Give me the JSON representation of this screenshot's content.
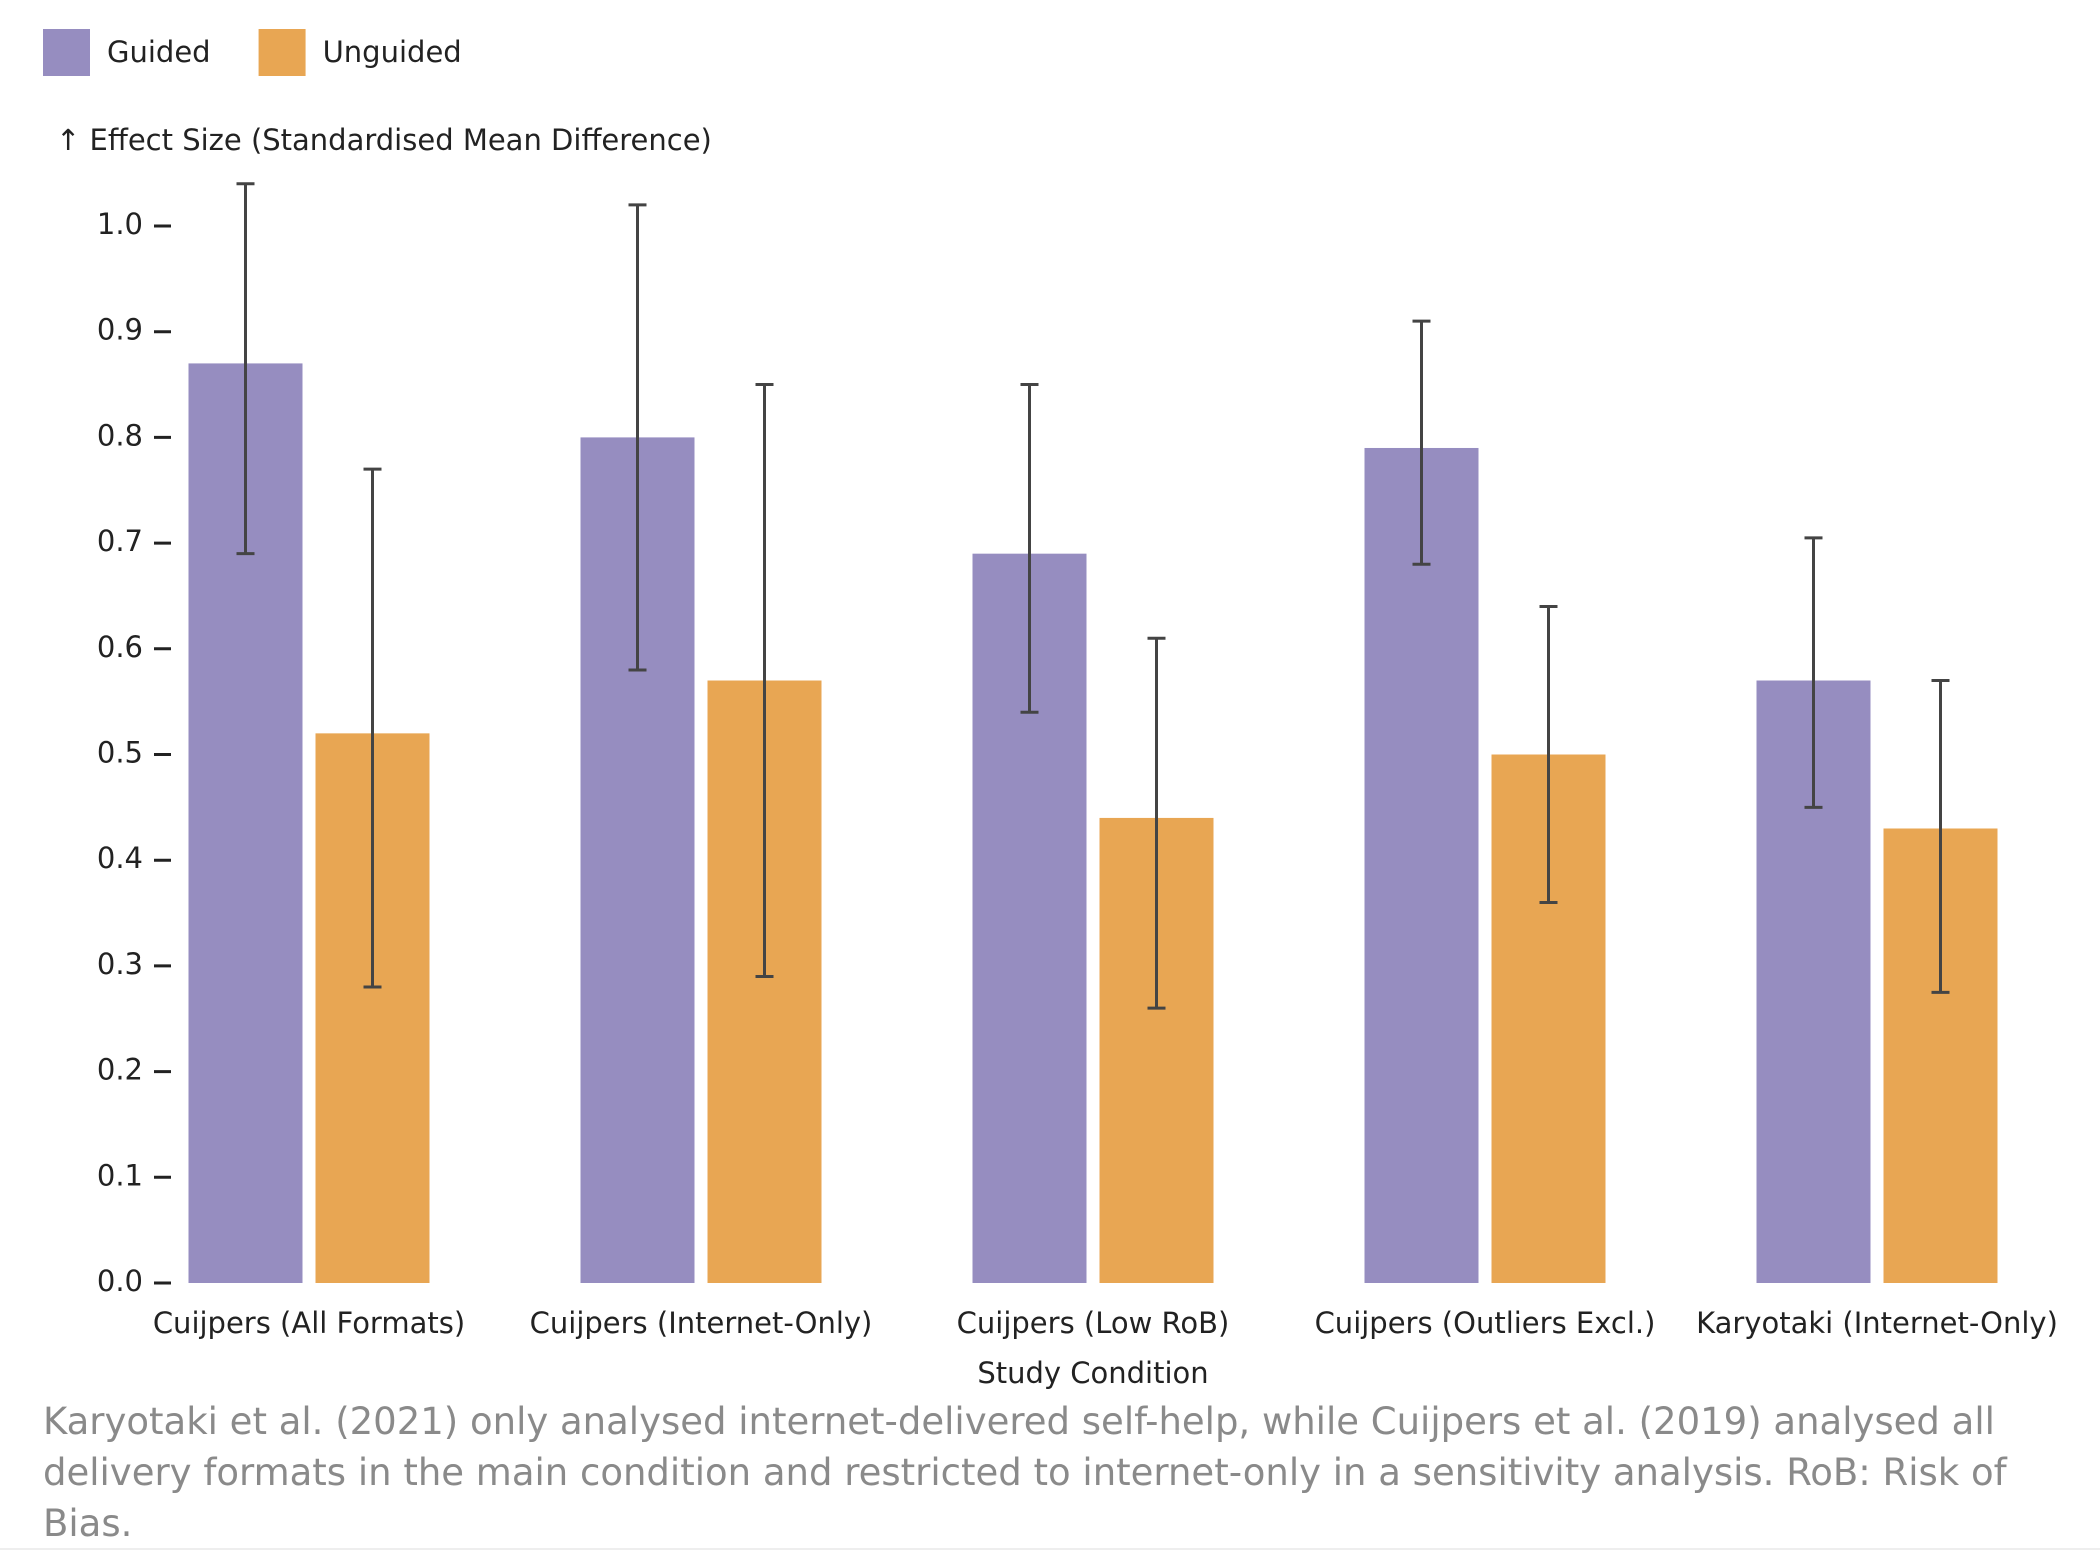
{
  "chart_data": {
    "type": "bar",
    "y_label": "↑ Effect Size (Standardised Mean Difference)",
    "x_label": "Study Condition",
    "categories": [
      "Cuijpers (All Formats)",
      "Cuijpers (Internet-Only)",
      "Cuijpers (Low RoB)",
      "Cuijpers (Outliers Excl.)",
      "Karyotaki (Internet-Only)"
    ],
    "series": [
      {
        "name": "Guided",
        "color": "#968dc0",
        "values": [
          0.87,
          0.8,
          0.69,
          0.79,
          0.57
        ],
        "lower": [
          0.69,
          0.58,
          0.54,
          0.68,
          0.45
        ],
        "upper": [
          1.04,
          1.02,
          0.85,
          0.91,
          0.705
        ]
      },
      {
        "name": "Unguided",
        "color": "#e8a653",
        "values": [
          0.52,
          0.57,
          0.44,
          0.5,
          0.43
        ],
        "lower": [
          0.28,
          0.29,
          0.26,
          0.36,
          0.275
        ],
        "upper": [
          0.77,
          0.85,
          0.61,
          0.64,
          0.57
        ]
      }
    ],
    "ylim": [
      0,
      1.05
    ],
    "yticks": [
      {
        "value": 0,
        "label": "0.0"
      },
      0.1,
      0.2,
      0.3,
      0.4,
      0.5,
      0.6,
      0.7,
      0.8,
      0.9,
      {
        "value": 1,
        "label": "1.0"
      }
    ],
    "error_bar_color": "#444444",
    "legend_position": "top-left"
  },
  "caption": "Karyotaki et al. (2021) only analysed internet-delivered self-help, while Cuijpers et al. (2019) analysed all delivery formats in the main condition and restricted to internet-only in a sensitivity analysis. RoB: Risk of Bias."
}
